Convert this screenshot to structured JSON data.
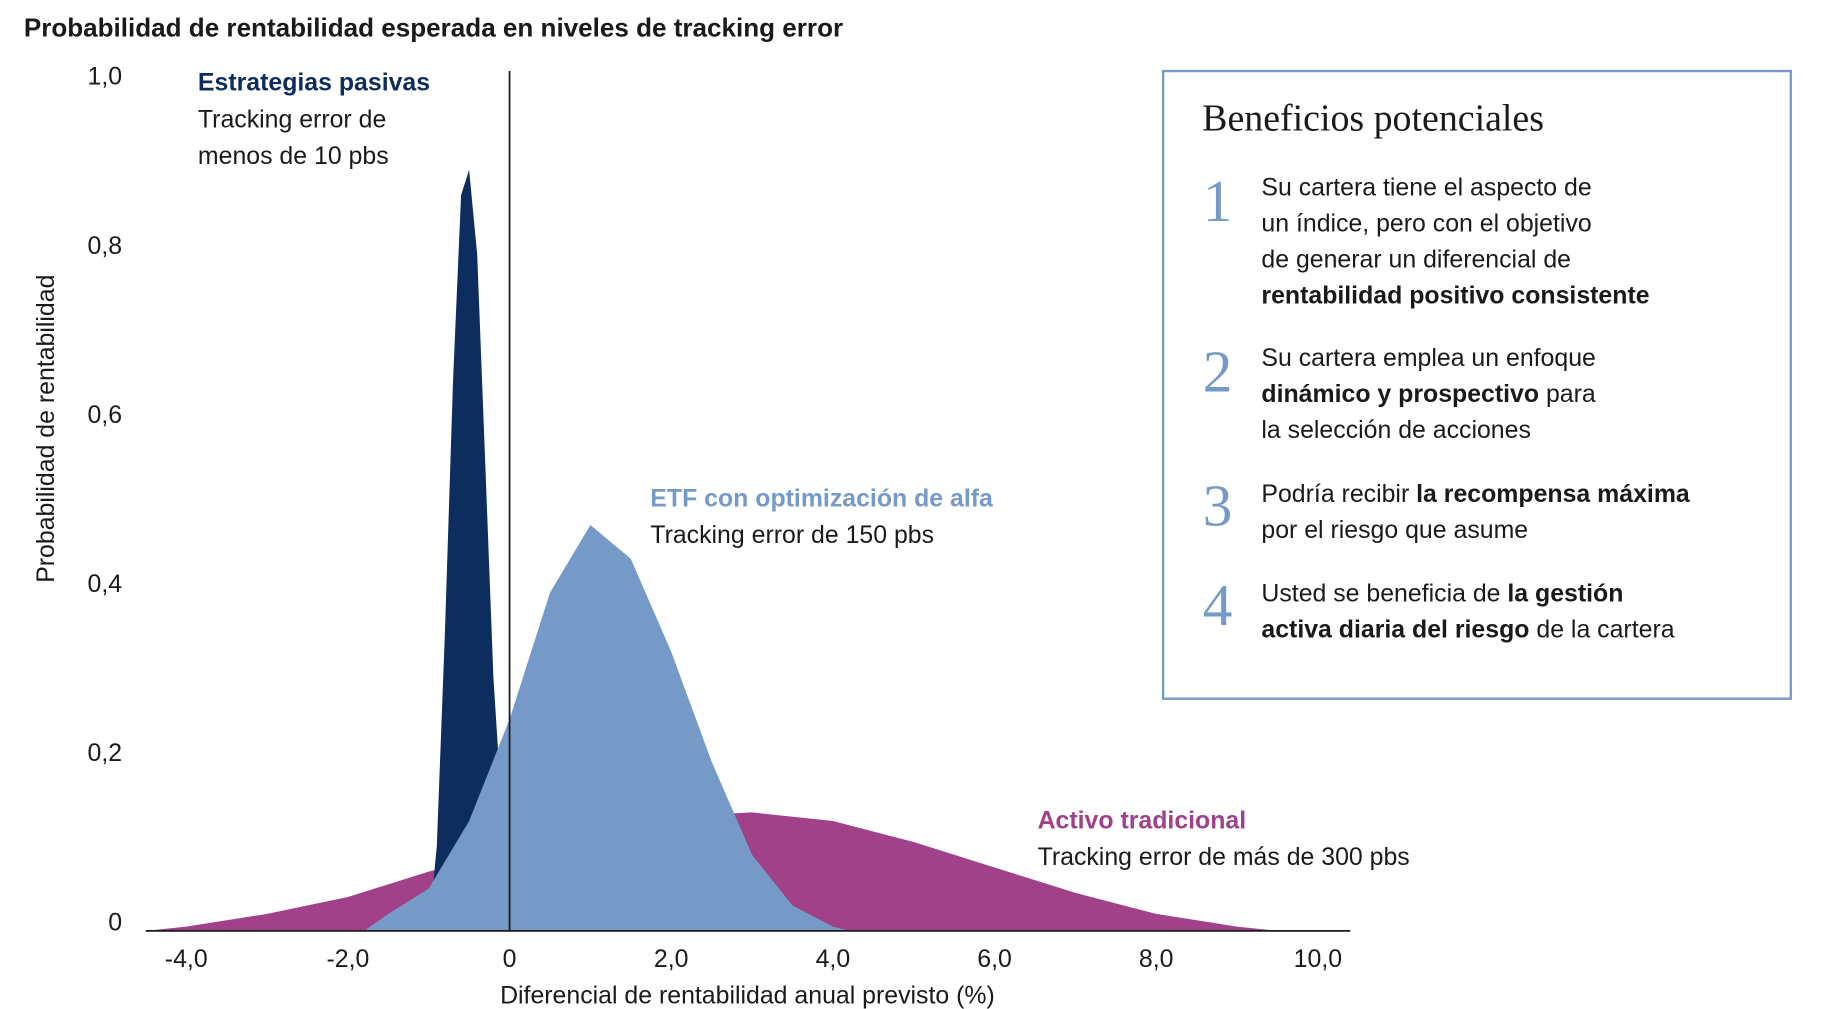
{
  "chart_data": {
    "type": "area",
    "title": "Probabilidad de rentabilidad esperada en niveles de tracking error",
    "x_label": "Diferencial de rentabilidad anual previsto (%)",
    "y_label": "Probabilidad de rentabilidad",
    "xlim": [
      -4.5,
      10.4
    ],
    "ylim": [
      0,
      1
    ],
    "xticks": [
      {
        "value": -4,
        "label": "-4,0"
      },
      {
        "value": -2,
        "label": "-2,0"
      },
      0,
      {
        "value": 2,
        "label": "2,0"
      },
      {
        "value": 4,
        "label": "4,0"
      },
      {
        "value": 6,
        "label": "6,0"
      },
      {
        "value": 8,
        "label": "8,0"
      },
      {
        "value": 10,
        "label": "10,0"
      }
    ],
    "yticks": [
      0,
      {
        "value": 0.2,
        "label": "0,2"
      },
      {
        "value": 0.4,
        "label": "0,4"
      },
      {
        "value": 0.6,
        "label": "0,6"
      },
      {
        "value": 0.8,
        "label": "0,8"
      },
      {
        "value": 1,
        "label": "1,0"
      }
    ],
    "series": [
      {
        "name": "Activo tradicional",
        "color": "#a0418a",
        "note": [
          "Tracking error de más de 300 pbs"
        ],
        "x": [
          -4.5,
          -4,
          -3,
          -2,
          -1,
          0,
          1,
          2,
          3,
          4,
          5,
          6,
          7,
          8,
          9,
          9.5
        ],
        "values": [
          0,
          0.005,
          0.02,
          0.04,
          0.07,
          0.095,
          0.12,
          0.135,
          0.14,
          0.13,
          0.105,
          0.075,
          0.045,
          0.02,
          0.005,
          0
        ]
      },
      {
        "name": "Estrategias pasivas",
        "color": "#0d2d5e",
        "note": [
          "Tracking error de",
          "menos de 10 pbs"
        ],
        "x": [
          -1.0,
          -0.9,
          -0.8,
          -0.7,
          -0.6,
          -0.5,
          -0.4,
          -0.3,
          -0.2,
          -0.1,
          0
        ],
        "values": [
          0,
          0.1,
          0.35,
          0.65,
          0.87,
          0.9,
          0.8,
          0.55,
          0.3,
          0.15,
          0
        ]
      },
      {
        "name": "ETF con optimización de alfa",
        "color": "#769ac8",
        "note": [
          "Tracking error de 150 pbs"
        ],
        "x": [
          -1.8,
          -1.5,
          -1,
          -0.5,
          0,
          0.5,
          1,
          1.5,
          2,
          2.5,
          3,
          3.5,
          4,
          4.2
        ],
        "values": [
          0,
          0.02,
          0.05,
          0.13,
          0.25,
          0.4,
          0.48,
          0.44,
          0.33,
          0.2,
          0.09,
          0.03,
          0.005,
          0
        ]
      }
    ]
  },
  "panel": {
    "title": "Beneficios potenciales",
    "items": [
      {
        "number": "1",
        "lines": [
          [
            {
              "text": "Su cartera tiene el aspecto de",
              "bold": false
            }
          ],
          [
            {
              "text": "un índice, pero con el objetivo",
              "bold": false
            }
          ],
          [
            {
              "text": "de generar un diferencial de",
              "bold": false
            }
          ],
          [
            {
              "text": "rentabilidad positivo consistente",
              "bold": true
            }
          ]
        ]
      },
      {
        "number": "2",
        "lines": [
          [
            {
              "text": "Su cartera emplea un enfoque",
              "bold": false
            }
          ],
          [
            {
              "text": "dinámico y prospectivo",
              "bold": true
            },
            {
              "text": " para",
              "bold": false
            }
          ],
          [
            {
              "text": "la selección de acciones",
              "bold": false
            }
          ]
        ]
      },
      {
        "number": "3",
        "lines": [
          [
            {
              "text": "Podría recibir ",
              "bold": false
            },
            {
              "text": "la recompensa máxima",
              "bold": true
            }
          ],
          [
            {
              "text": "por el riesgo que asume",
              "bold": false
            }
          ]
        ]
      },
      {
        "number": "4",
        "lines": [
          [
            {
              "text": "Usted se beneficia de ",
              "bold": false
            },
            {
              "text": "la gestión",
              "bold": true
            }
          ],
          [
            {
              "text": "activa diaria del riesgo",
              "bold": true
            },
            {
              "text": " de la cartera",
              "bold": false
            }
          ]
        ]
      }
    ]
  }
}
